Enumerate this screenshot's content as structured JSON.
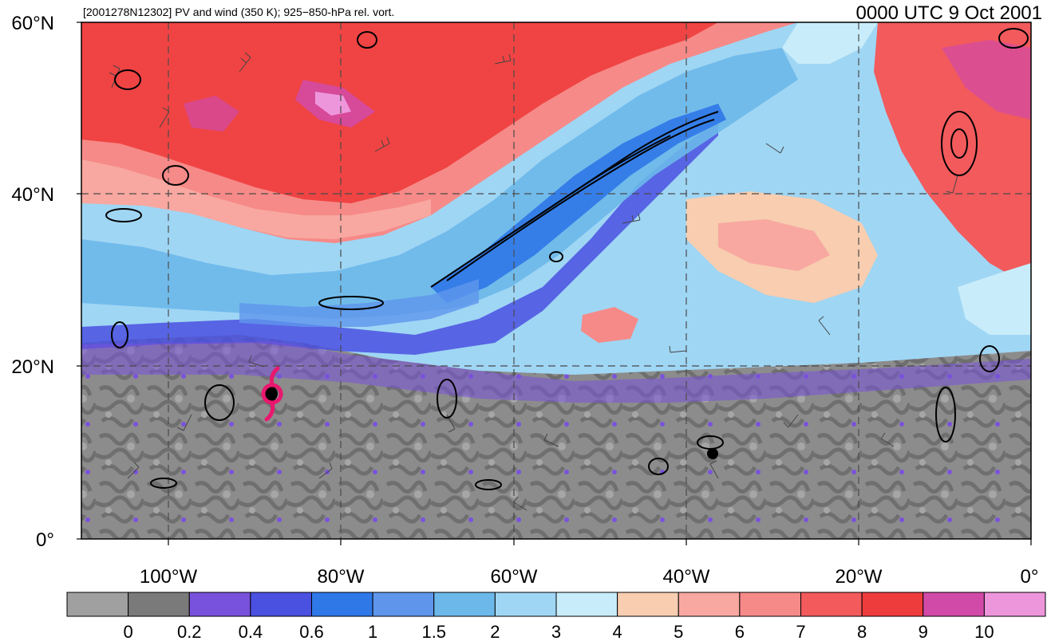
{
  "header": {
    "left_title": "[2001278N12302] PV and wind (350 K); 925−850-hPa rel. vort.",
    "right_title": "0000 UTC 9 Oct 2001"
  },
  "axes": {
    "lat_labels": [
      "60°N",
      "40°N",
      "20°N",
      "0°"
    ],
    "lon_labels": [
      "100°W",
      "80°W",
      "60°W",
      "40°W",
      "20°W",
      "0°"
    ]
  },
  "colorbar": {
    "colors": [
      "#a0a0a0",
      "#7a7a7a",
      "#7852dc",
      "#4a50e0",
      "#2f78e8",
      "#5f96ec",
      "#6cb8ea",
      "#9fd6f4",
      "#c8ecfa",
      "#f8cdb0",
      "#f8a8a0",
      "#f68a88",
      "#f25a5c",
      "#ee3c3c",
      "#d24aa8",
      "#ee96dc"
    ],
    "labels": [
      "0",
      "0.2",
      "0.4",
      "0.6",
      "1",
      "1.5",
      "2",
      "3",
      "4",
      "5",
      "6",
      "7",
      "8",
      "9",
      "10"
    ]
  },
  "storm_symbol": "tropical-cyclone-symbol",
  "storm_color": "#e8186e"
}
